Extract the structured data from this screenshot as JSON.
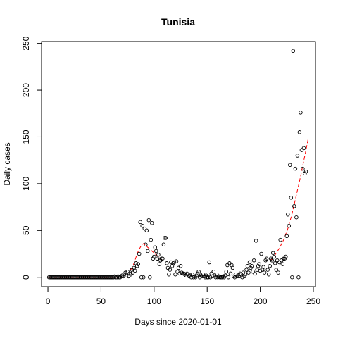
{
  "chart_data": {
    "type": "scatter",
    "title": "Tunisia",
    "xlabel": "Days since 2020-01-01",
    "ylabel": "Daily cases",
    "xlim": [
      -6,
      252
    ],
    "ylim": [
      -10,
      252
    ],
    "xticks": [
      0,
      50,
      100,
      150,
      200,
      250
    ],
    "yticks": [
      0,
      50,
      100,
      150,
      200,
      250
    ],
    "grid": false,
    "point_color": "#000000",
    "fit_color": "#ff0000",
    "points": [
      [
        1,
        0
      ],
      [
        2,
        0
      ],
      [
        3,
        0
      ],
      [
        4,
        0
      ],
      [
        5,
        0
      ],
      [
        6,
        0
      ],
      [
        7,
        0
      ],
      [
        8,
        0
      ],
      [
        9,
        0
      ],
      [
        10,
        0
      ],
      [
        11,
        0
      ],
      [
        12,
        0
      ],
      [
        13,
        0
      ],
      [
        14,
        0
      ],
      [
        15,
        0
      ],
      [
        16,
        0
      ],
      [
        17,
        0
      ],
      [
        18,
        0
      ],
      [
        19,
        0
      ],
      [
        20,
        0
      ],
      [
        21,
        0
      ],
      [
        22,
        0
      ],
      [
        23,
        0
      ],
      [
        24,
        0
      ],
      [
        25,
        0
      ],
      [
        26,
        0
      ],
      [
        27,
        0
      ],
      [
        28,
        0
      ],
      [
        29,
        0
      ],
      [
        30,
        0
      ],
      [
        31,
        0
      ],
      [
        32,
        0
      ],
      [
        33,
        0
      ],
      [
        34,
        0
      ],
      [
        35,
        0
      ],
      [
        36,
        0
      ],
      [
        37,
        0
      ],
      [
        38,
        0
      ],
      [
        39,
        0
      ],
      [
        40,
        0
      ],
      [
        41,
        0
      ],
      [
        42,
        0
      ],
      [
        43,
        0
      ],
      [
        44,
        0
      ],
      [
        45,
        0
      ],
      [
        46,
        0
      ],
      [
        47,
        0
      ],
      [
        48,
        0
      ],
      [
        49,
        0
      ],
      [
        50,
        0
      ],
      [
        51,
        0
      ],
      [
        52,
        0
      ],
      [
        53,
        0
      ],
      [
        54,
        0
      ],
      [
        55,
        0
      ],
      [
        56,
        0
      ],
      [
        57,
        0
      ],
      [
        58,
        0
      ],
      [
        59,
        0
      ],
      [
        60,
        0
      ],
      [
        61,
        0
      ],
      [
        62,
        0
      ],
      [
        63,
        1
      ],
      [
        64,
        0
      ],
      [
        65,
        0
      ],
      [
        66,
        1
      ],
      [
        67,
        0
      ],
      [
        68,
        0
      ],
      [
        69,
        1
      ],
      [
        70,
        2
      ],
      [
        71,
        1
      ],
      [
        72,
        3
      ],
      [
        73,
        5
      ],
      [
        74,
        2
      ],
      [
        75,
        6
      ],
      [
        76,
        1
      ],
      [
        77,
        4
      ],
      [
        78,
        3
      ],
      [
        79,
        8
      ],
      [
        80,
        5
      ],
      [
        81,
        10
      ],
      [
        82,
        7
      ],
      [
        83,
        15
      ],
      [
        84,
        12
      ],
      [
        85,
        14
      ],
      [
        86,
        25
      ],
      [
        87,
        59
      ],
      [
        88,
        0
      ],
      [
        89,
        55
      ],
      [
        90,
        0
      ],
      [
        91,
        52
      ],
      [
        92,
        35
      ],
      [
        93,
        50
      ],
      [
        94,
        28
      ],
      [
        95,
        61
      ],
      [
        96,
        0
      ],
      [
        97,
        40
      ],
      [
        98,
        58
      ],
      [
        99,
        20
      ],
      [
        100,
        22
      ],
      [
        101,
        32
      ],
      [
        102,
        28
      ],
      [
        103,
        20
      ],
      [
        104,
        24
      ],
      [
        105,
        14
      ],
      [
        106,
        18
      ],
      [
        107,
        20
      ],
      [
        108,
        20
      ],
      [
        109,
        35
      ],
      [
        110,
        42
      ],
      [
        111,
        42
      ],
      [
        112,
        15
      ],
      [
        113,
        10
      ],
      [
        114,
        3
      ],
      [
        115,
        8
      ],
      [
        116,
        16
      ],
      [
        117,
        12
      ],
      [
        118,
        15
      ],
      [
        119,
        16
      ],
      [
        120,
        3
      ],
      [
        121,
        17
      ],
      [
        122,
        6
      ],
      [
        123,
        10
      ],
      [
        124,
        4
      ],
      [
        125,
        12
      ],
      [
        126,
        5
      ],
      [
        127,
        4
      ],
      [
        128,
        4
      ],
      [
        129,
        3
      ],
      [
        130,
        2
      ],
      [
        131,
        4
      ],
      [
        132,
        3
      ],
      [
        133,
        1
      ],
      [
        134,
        2
      ],
      [
        135,
        0
      ],
      [
        136,
        3
      ],
      [
        137,
        0
      ],
      [
        138,
        1
      ],
      [
        139,
        0
      ],
      [
        140,
        2
      ],
      [
        141,
        4
      ],
      [
        142,
        6
      ],
      [
        143,
        0
      ],
      [
        144,
        2
      ],
      [
        145,
        1
      ],
      [
        146,
        3
      ],
      [
        147,
        1
      ],
      [
        148,
        0
      ],
      [
        149,
        2
      ],
      [
        150,
        0
      ],
      [
        151,
        0
      ],
      [
        152,
        16
      ],
      [
        153,
        0
      ],
      [
        154,
        4
      ],
      [
        155,
        1
      ],
      [
        156,
        6
      ],
      [
        157,
        2
      ],
      [
        158,
        0
      ],
      [
        159,
        3
      ],
      [
        160,
        0
      ],
      [
        161,
        1
      ],
      [
        162,
        0
      ],
      [
        163,
        0
      ],
      [
        164,
        0
      ],
      [
        165,
        1
      ],
      [
        166,
        0
      ],
      [
        167,
        2
      ],
      [
        168,
        6
      ],
      [
        169,
        13
      ],
      [
        170,
        0
      ],
      [
        171,
        15
      ],
      [
        172,
        4
      ],
      [
        173,
        13
      ],
      [
        174,
        10
      ],
      [
        175,
        1
      ],
      [
        176,
        0
      ],
      [
        177,
        3
      ],
      [
        178,
        1
      ],
      [
        179,
        2
      ],
      [
        180,
        1
      ],
      [
        181,
        4
      ],
      [
        182,
        3
      ],
      [
        183,
        0
      ],
      [
        184,
        5
      ],
      [
        185,
        1
      ],
      [
        186,
        3
      ],
      [
        187,
        8
      ],
      [
        188,
        12
      ],
      [
        189,
        5
      ],
      [
        190,
        16
      ],
      [
        191,
        10
      ],
      [
        192,
        12
      ],
      [
        193,
        6
      ],
      [
        194,
        18
      ],
      [
        195,
        4
      ],
      [
        196,
        39
      ],
      [
        197,
        8
      ],
      [
        198,
        12
      ],
      [
        199,
        14
      ],
      [
        200,
        7
      ],
      [
        201,
        25
      ],
      [
        202,
        8
      ],
      [
        203,
        11
      ],
      [
        204,
        5
      ],
      [
        205,
        18
      ],
      [
        206,
        20
      ],
      [
        207,
        8
      ],
      [
        208,
        3
      ],
      [
        209,
        12
      ],
      [
        210,
        20
      ],
      [
        211,
        18
      ],
      [
        212,
        26
      ],
      [
        213,
        22
      ],
      [
        214,
        15
      ],
      [
        215,
        8
      ],
      [
        216,
        18
      ],
      [
        217,
        5
      ],
      [
        218,
        16
      ],
      [
        219,
        40
      ],
      [
        220,
        18
      ],
      [
        221,
        14
      ],
      [
        222,
        20
      ],
      [
        223,
        20
      ],
      [
        224,
        22
      ],
      [
        225,
        44
      ],
      [
        226,
        67
      ],
      [
        227,
        55
      ],
      [
        228,
        120
      ],
      [
        229,
        85
      ],
      [
        230,
        0
      ],
      [
        231,
        242
      ],
      [
        232,
        76
      ],
      [
        233,
        116
      ],
      [
        234,
        64
      ],
      [
        235,
        130
      ],
      [
        236,
        0
      ],
      [
        237,
        155
      ],
      [
        238,
        176
      ],
      [
        239,
        136
      ],
      [
        240,
        116
      ],
      [
        241,
        138
      ],
      [
        242,
        111
      ],
      [
        243,
        113
      ]
    ],
    "fit_segments": [
      [
        [
          0,
          0
        ],
        [
          70,
          0
        ]
      ],
      [
        [
          78,
          8
        ],
        [
          80,
          12
        ],
        [
          82,
          18
        ],
        [
          84,
          25
        ],
        [
          86,
          30
        ],
        [
          88,
          34
        ],
        [
          90,
          36
        ],
        [
          92,
          34
        ],
        [
          94,
          32
        ],
        [
          96,
          30
        ],
        [
          98,
          28
        ],
        [
          100,
          26
        ],
        [
          102,
          24
        ],
        [
          104,
          22
        ],
        [
          106,
          20
        ],
        [
          108,
          18
        ]
      ],
      [
        [
          210,
          18
        ],
        [
          214,
          24
        ],
        [
          218,
          31
        ],
        [
          222,
          40
        ],
        [
          226,
          52
        ],
        [
          230,
          68
        ],
        [
          234,
          88
        ],
        [
          238,
          108
        ],
        [
          242,
          130
        ],
        [
          245,
          147
        ]
      ]
    ]
  }
}
